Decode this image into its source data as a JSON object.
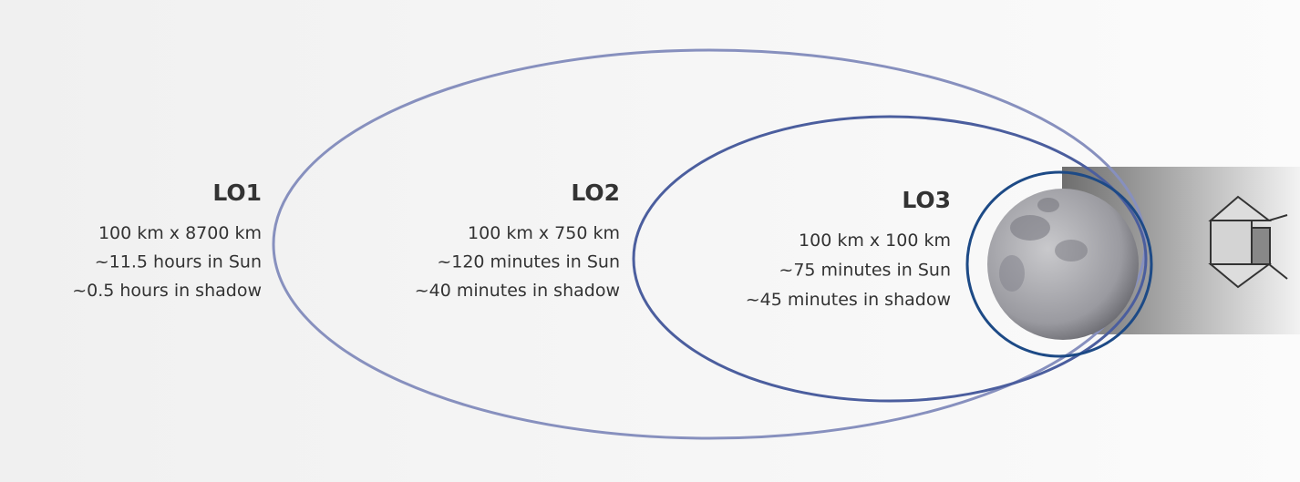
{
  "orbits": [
    {
      "name": "LO1",
      "lines": [
        "100 km x 8700 km",
        "~11.5 hours in Sun",
        "~0.5 hours in shadow"
      ]
    },
    {
      "name": "LO2",
      "lines": [
        "100 km x 750 km",
        "~120 minutes in Sun",
        "~40 minutes in shadow"
      ]
    },
    {
      "name": "LO3",
      "lines": [
        "100 km x 100 km",
        "~75 minutes in Sun",
        "~45 minutes in shadow"
      ]
    }
  ]
}
